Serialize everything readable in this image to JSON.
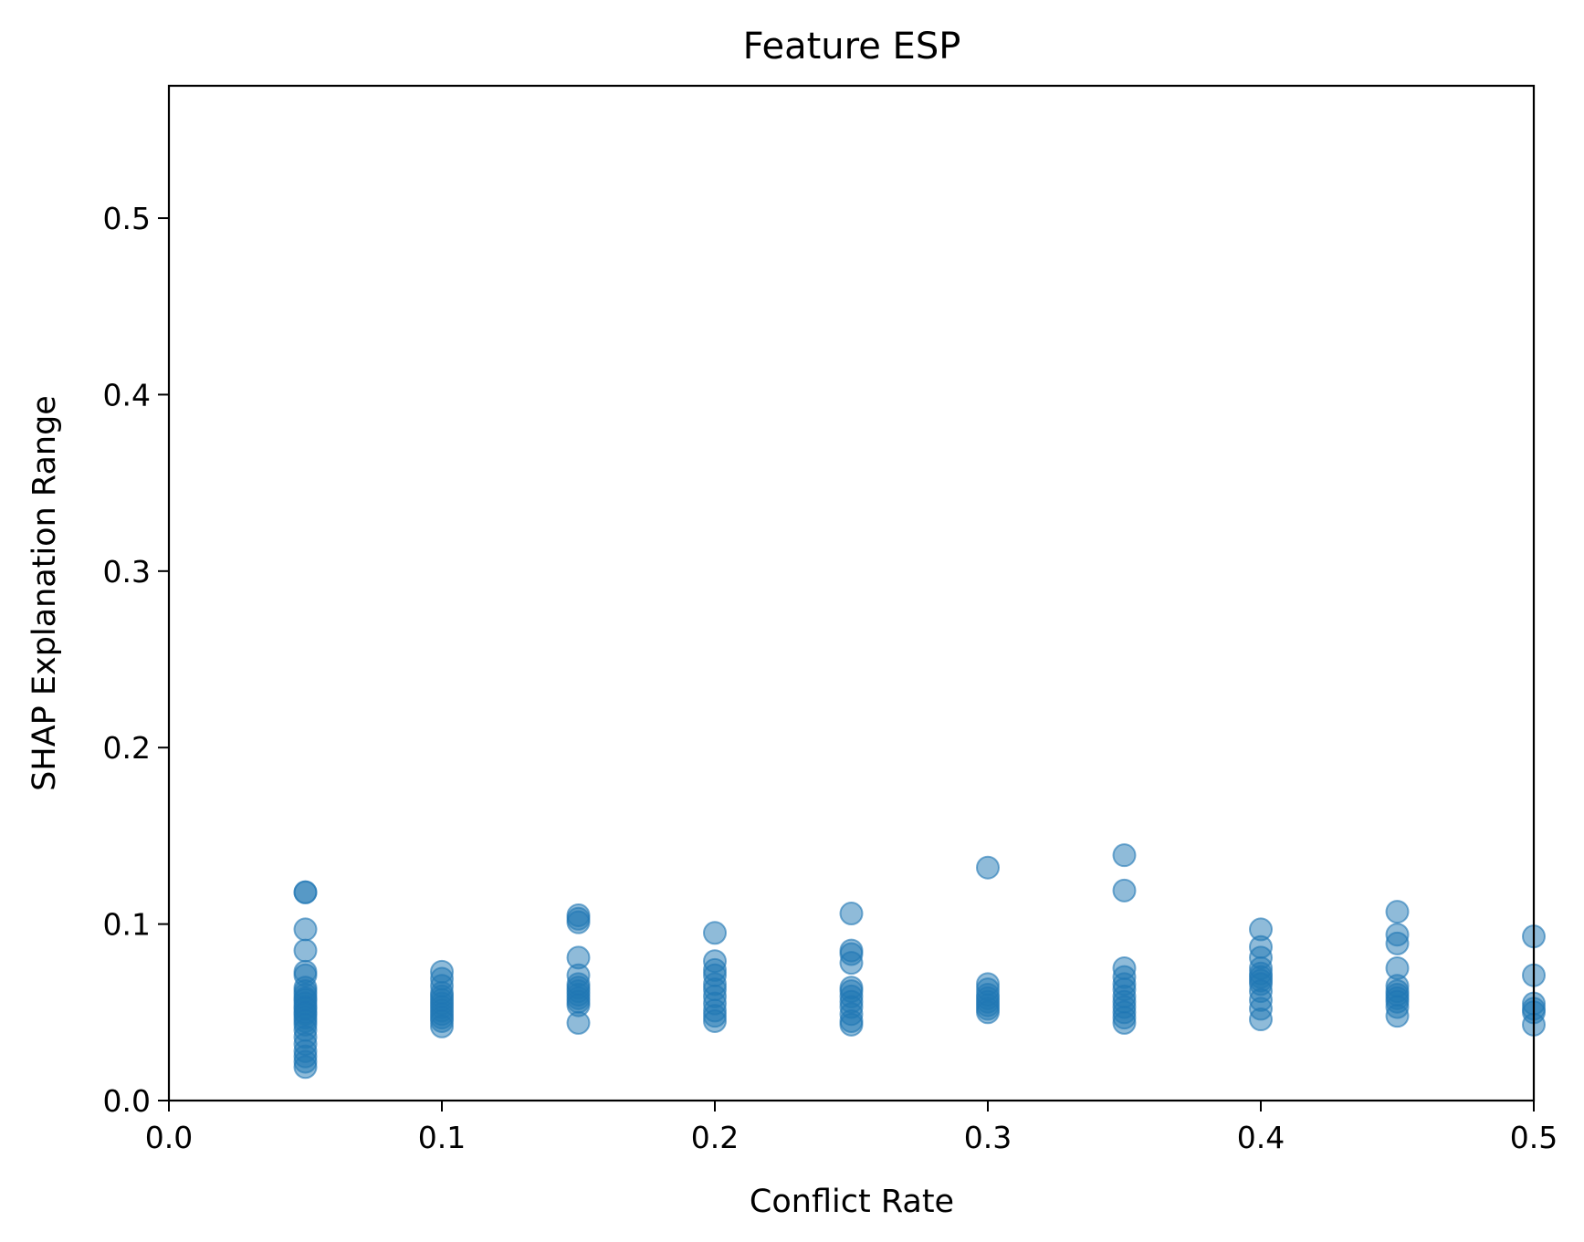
{
  "chart_data": {
    "type": "scatter",
    "title": "Feature ESP",
    "xlabel": "Conflict Rate",
    "ylabel": "SHAP Explanation Range",
    "xlim": [
      0.0,
      0.5
    ],
    "ylim": [
      0.0,
      0.575
    ],
    "xticks": [
      "0.0",
      "0.1",
      "0.2",
      "0.3",
      "0.4",
      "0.5"
    ],
    "yticks": [
      "0.0",
      "0.1",
      "0.2",
      "0.3",
      "0.4",
      "0.5"
    ],
    "grid": false,
    "marker_color": "#1f77b4",
    "marker_alpha": 0.5,
    "points": [
      {
        "x": 0.05,
        "y": [
          0.118,
          0.118,
          0.097,
          0.085,
          0.073,
          0.071,
          0.064,
          0.062,
          0.06,
          0.058,
          0.057,
          0.055,
          0.053,
          0.052,
          0.05,
          0.049,
          0.047,
          0.045,
          0.043,
          0.04,
          0.036,
          0.032,
          0.028,
          0.025,
          0.022,
          0.019
        ]
      },
      {
        "x": 0.1,
        "y": [
          0.073,
          0.069,
          0.065,
          0.061,
          0.059,
          0.057,
          0.055,
          0.053,
          0.051,
          0.049,
          0.047,
          0.045,
          0.042
        ]
      },
      {
        "x": 0.15,
        "y": [
          0.105,
          0.103,
          0.101,
          0.081,
          0.071,
          0.066,
          0.064,
          0.062,
          0.06,
          0.058,
          0.056,
          0.054,
          0.044
        ]
      },
      {
        "x": 0.2,
        "y": [
          0.095,
          0.079,
          0.074,
          0.071,
          0.066,
          0.063,
          0.059,
          0.055,
          0.051,
          0.048,
          0.045
        ]
      },
      {
        "x": 0.25,
        "y": [
          0.106,
          0.085,
          0.083,
          0.078,
          0.064,
          0.062,
          0.059,
          0.056,
          0.053,
          0.049,
          0.045,
          0.043
        ]
      },
      {
        "x": 0.3,
        "y": [
          0.132,
          0.066,
          0.063,
          0.06,
          0.058,
          0.056,
          0.054,
          0.052,
          0.05
        ]
      },
      {
        "x": 0.35,
        "y": [
          0.139,
          0.119,
          0.075,
          0.07,
          0.066,
          0.063,
          0.059,
          0.056,
          0.053,
          0.05,
          0.047,
          0.044
        ]
      },
      {
        "x": 0.4,
        "y": [
          0.097,
          0.087,
          0.081,
          0.075,
          0.072,
          0.07,
          0.068,
          0.066,
          0.062,
          0.057,
          0.052,
          0.046
        ]
      },
      {
        "x": 0.45,
        "y": [
          0.107,
          0.094,
          0.089,
          0.075,
          0.065,
          0.062,
          0.06,
          0.058,
          0.056,
          0.053,
          0.048
        ]
      },
      {
        "x": 0.5,
        "y": [
          0.093,
          0.071,
          0.055,
          0.052,
          0.05,
          0.043
        ]
      }
    ]
  }
}
